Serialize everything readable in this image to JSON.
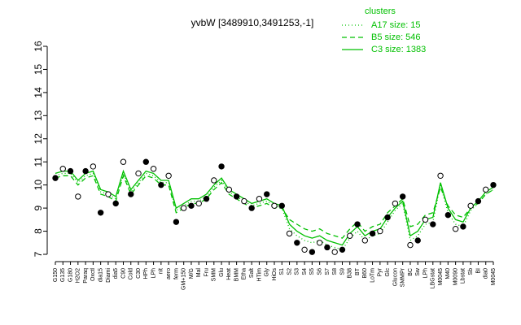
{
  "chart_data": {
    "type": "line",
    "title": "yvbW [3489910,3491253,-1]",
    "legend_title": "clusters",
    "legend_position": "top-right",
    "categories": [
      "G150",
      "G135",
      "G180",
      "H2O2",
      "Paraq",
      "Oxctl",
      "dia15",
      "Diami",
      "dia5",
      "C90",
      "Cold",
      "C30",
      "HPh",
      "LPh",
      "nit",
      "aero",
      "ferm",
      "GM+150",
      "M/G",
      "Mal",
      "Fru",
      "SMM",
      "Glu",
      "Heat",
      "BMM",
      "Etha",
      "Salt",
      "HTim",
      "Gly",
      "HiOs",
      "S1",
      "S2",
      "S3",
      "S4",
      "S5",
      "S6",
      "S7",
      "S8",
      "S9",
      "B38",
      "BT",
      "B60",
      "LoTm",
      "Pyr",
      "Glc",
      "Glucon",
      "SMMPr",
      "BC",
      "Sw",
      "LPh",
      "LBGstat",
      "M0045",
      "M40",
      "M0090",
      "Lbstat",
      "Sb",
      "BI",
      "dia0",
      "M0045"
    ],
    "points": [
      10.3,
      10.7,
      10.6,
      9.5,
      10.6,
      10.8,
      8.8,
      9.6,
      9.2,
      11.0,
      9.6,
      10.5,
      11.0,
      10.7,
      10.0,
      10.4,
      8.4,
      9.0,
      9.1,
      9.2,
      9.4,
      10.2,
      10.8,
      9.8,
      9.5,
      9.3,
      9.0,
      9.4,
      9.6,
      9.1,
      9.1,
      7.9,
      7.5,
      7.2,
      7.1,
      7.5,
      7.3,
      7.1,
      7.2,
      7.8,
      8.3,
      7.6,
      7.9,
      8.0,
      8.6,
      9.2,
      9.5,
      7.4,
      7.6,
      8.5,
      8.3,
      10.4,
      8.7,
      8.1,
      8.2,
      9.1,
      9.3,
      9.8,
      10.0
    ],
    "point_color": "#000000",
    "series": [
      {
        "name": "A17 size: 15",
        "color": "#00c000",
        "dash": "1,3",
        "values": [
          10.4,
          10.5,
          10.5,
          10.1,
          10.4,
          10.5,
          9.7,
          9.6,
          9.4,
          10.5,
          9.7,
          10.1,
          10.5,
          10.4,
          10.1,
          10.1,
          8.9,
          9.1,
          9.3,
          9.3,
          9.5,
          9.9,
          10.2,
          9.7,
          9.5,
          9.3,
          9.1,
          9.2,
          9.3,
          9.1,
          9.0,
          8.1,
          7.8,
          7.6,
          7.5,
          7.6,
          7.4,
          7.3,
          7.2,
          7.7,
          8.0,
          7.6,
          7.8,
          7.9,
          8.4,
          8.9,
          9.2,
          7.6,
          7.8,
          8.3,
          8.4,
          10.0,
          8.8,
          8.3,
          8.2,
          8.9,
          9.2,
          9.6,
          9.8
        ]
      },
      {
        "name": "B5 size: 546",
        "color": "#00c000",
        "dash": "6,4",
        "values": [
          10.3,
          10.4,
          10.4,
          10.0,
          10.3,
          10.4,
          9.6,
          9.5,
          9.3,
          10.4,
          9.6,
          10.0,
          10.4,
          10.3,
          10.0,
          10.0,
          8.8,
          9.0,
          9.2,
          9.2,
          9.4,
          9.8,
          10.1,
          9.6,
          9.4,
          9.2,
          9.0,
          9.1,
          9.2,
          9.0,
          9.0,
          8.5,
          8.3,
          8.1,
          8.0,
          8.1,
          7.9,
          7.8,
          7.7,
          8.1,
          8.4,
          8.0,
          8.2,
          8.3,
          8.8,
          9.1,
          9.4,
          8.2,
          8.3,
          8.7,
          8.8,
          9.9,
          9.1,
          8.7,
          8.6,
          9.0,
          9.2,
          9.6,
          9.8
        ]
      },
      {
        "name": "C3 size: 1383",
        "color": "#00c000",
        "dash": "none",
        "values": [
          10.5,
          10.6,
          10.6,
          10.2,
          10.5,
          10.6,
          9.8,
          9.7,
          9.5,
          10.6,
          9.8,
          10.2,
          10.6,
          10.5,
          10.2,
          10.2,
          9.0,
          9.2,
          9.4,
          9.4,
          9.6,
          10.0,
          10.3,
          9.8,
          9.6,
          9.4,
          9.2,
          9.3,
          9.4,
          9.2,
          9.1,
          8.3,
          8.0,
          7.8,
          7.7,
          7.8,
          7.6,
          7.5,
          7.4,
          7.9,
          8.2,
          7.8,
          8.0,
          8.1,
          8.6,
          9.0,
          9.3,
          7.8,
          8.0,
          8.5,
          8.6,
          10.1,
          9.0,
          8.5,
          8.4,
          9.0,
          9.3,
          9.7,
          9.9
        ]
      }
    ],
    "ylim": [
      7,
      16
    ],
    "yticks": [
      7,
      8,
      9,
      10,
      11,
      12,
      13,
      14,
      15,
      16
    ]
  }
}
